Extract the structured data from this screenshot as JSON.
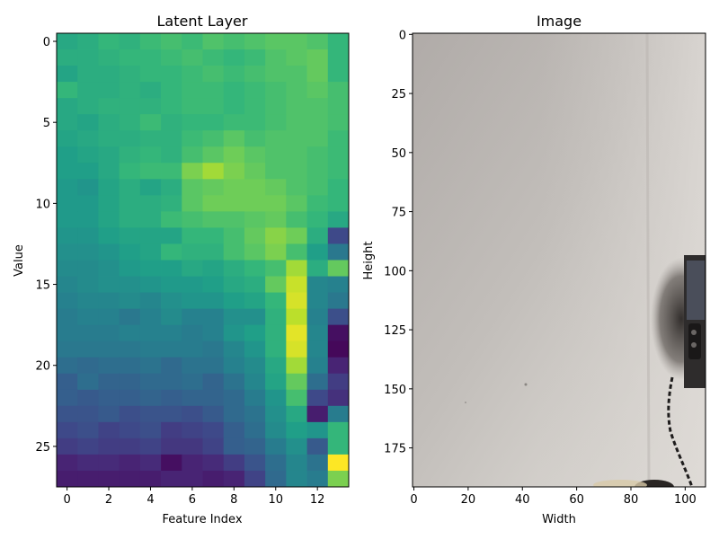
{
  "chart_data": [
    {
      "type": "heatmap",
      "title": "Latent Layer",
      "xlabel": "Feature Index",
      "ylabel": "Value",
      "x_ticks": [
        "0",
        "2",
        "4",
        "6",
        "8",
        "10",
        "12"
      ],
      "y_ticks": [
        "0",
        "5",
        "10",
        "15",
        "20",
        "25"
      ],
      "x_range": [
        -0.5,
        13.5
      ],
      "y_range": [
        -0.5,
        27.5
      ],
      "colormap": "viridis",
      "grid": false,
      "values": [
        [
          0.6,
          0.62,
          0.66,
          0.64,
          0.68,
          0.7,
          0.68,
          0.72,
          0.7,
          0.72,
          0.74,
          0.74,
          0.72,
          0.66
        ],
        [
          0.62,
          0.62,
          0.64,
          0.66,
          0.66,
          0.68,
          0.7,
          0.68,
          0.66,
          0.68,
          0.72,
          0.74,
          0.76,
          0.66
        ],
        [
          0.58,
          0.62,
          0.62,
          0.64,
          0.66,
          0.66,
          0.68,
          0.7,
          0.68,
          0.7,
          0.72,
          0.72,
          0.76,
          0.66
        ],
        [
          0.66,
          0.62,
          0.62,
          0.64,
          0.62,
          0.66,
          0.68,
          0.68,
          0.66,
          0.68,
          0.7,
          0.72,
          0.74,
          0.7
        ],
        [
          0.6,
          0.62,
          0.64,
          0.64,
          0.64,
          0.66,
          0.68,
          0.68,
          0.66,
          0.68,
          0.7,
          0.72,
          0.72,
          0.7
        ],
        [
          0.6,
          0.58,
          0.62,
          0.64,
          0.68,
          0.64,
          0.66,
          0.66,
          0.68,
          0.68,
          0.7,
          0.72,
          0.72,
          0.7
        ],
        [
          0.58,
          0.6,
          0.62,
          0.62,
          0.64,
          0.64,
          0.68,
          0.7,
          0.74,
          0.7,
          0.72,
          0.72,
          0.72,
          0.68
        ],
        [
          0.56,
          0.58,
          0.6,
          0.64,
          0.66,
          0.64,
          0.7,
          0.74,
          0.78,
          0.74,
          0.72,
          0.72,
          0.7,
          0.68
        ],
        [
          0.56,
          0.56,
          0.6,
          0.66,
          0.68,
          0.68,
          0.8,
          0.86,
          0.8,
          0.76,
          0.72,
          0.72,
          0.7,
          0.68
        ],
        [
          0.54,
          0.52,
          0.58,
          0.62,
          0.58,
          0.62,
          0.74,
          0.76,
          0.78,
          0.78,
          0.76,
          0.72,
          0.7,
          0.66
        ],
        [
          0.54,
          0.54,
          0.58,
          0.62,
          0.62,
          0.64,
          0.74,
          0.78,
          0.78,
          0.78,
          0.78,
          0.74,
          0.68,
          0.66
        ],
        [
          0.54,
          0.54,
          0.58,
          0.62,
          0.62,
          0.68,
          0.7,
          0.72,
          0.72,
          0.74,
          0.76,
          0.7,
          0.66,
          0.6
        ],
        [
          0.52,
          0.52,
          0.56,
          0.58,
          0.58,
          0.58,
          0.66,
          0.66,
          0.7,
          0.76,
          0.82,
          0.78,
          0.62,
          0.22
        ],
        [
          0.5,
          0.5,
          0.52,
          0.56,
          0.58,
          0.66,
          0.64,
          0.64,
          0.7,
          0.74,
          0.8,
          0.7,
          0.56,
          0.4
        ],
        [
          0.48,
          0.48,
          0.5,
          0.54,
          0.56,
          0.56,
          0.6,
          0.58,
          0.62,
          0.66,
          0.7,
          0.86,
          0.62,
          0.76
        ],
        [
          0.46,
          0.48,
          0.5,
          0.5,
          0.52,
          0.54,
          0.54,
          0.56,
          0.6,
          0.62,
          0.76,
          0.92,
          0.46,
          0.44
        ],
        [
          0.44,
          0.46,
          0.46,
          0.48,
          0.46,
          0.5,
          0.52,
          0.52,
          0.56,
          0.58,
          0.66,
          0.94,
          0.46,
          0.4
        ],
        [
          0.42,
          0.44,
          0.44,
          0.4,
          0.44,
          0.48,
          0.44,
          0.44,
          0.5,
          0.5,
          0.64,
          0.9,
          0.44,
          0.24
        ],
        [
          0.42,
          0.42,
          0.42,
          0.44,
          0.44,
          0.44,
          0.42,
          0.44,
          0.52,
          0.56,
          0.64,
          0.96,
          0.46,
          0.04
        ],
        [
          0.4,
          0.4,
          0.4,
          0.4,
          0.42,
          0.42,
          0.42,
          0.4,
          0.46,
          0.52,
          0.64,
          0.94,
          0.46,
          0.02
        ],
        [
          0.36,
          0.34,
          0.36,
          0.36,
          0.38,
          0.34,
          0.38,
          0.38,
          0.44,
          0.48,
          0.6,
          0.86,
          0.44,
          0.1
        ],
        [
          0.3,
          0.36,
          0.32,
          0.32,
          0.34,
          0.34,
          0.36,
          0.32,
          0.38,
          0.46,
          0.58,
          0.76,
          0.36,
          0.18
        ],
        [
          0.3,
          0.28,
          0.3,
          0.3,
          0.32,
          0.3,
          0.32,
          0.32,
          0.34,
          0.42,
          0.52,
          0.7,
          0.22,
          0.14
        ],
        [
          0.26,
          0.26,
          0.28,
          0.24,
          0.26,
          0.26,
          0.24,
          0.28,
          0.34,
          0.38,
          0.5,
          0.6,
          0.08,
          0.42
        ],
        [
          0.22,
          0.24,
          0.2,
          0.22,
          0.24,
          0.18,
          0.2,
          0.22,
          0.3,
          0.36,
          0.48,
          0.56,
          0.52,
          0.66
        ],
        [
          0.18,
          0.2,
          0.18,
          0.18,
          0.2,
          0.16,
          0.16,
          0.2,
          0.3,
          0.32,
          0.42,
          0.5,
          0.28,
          0.66
        ],
        [
          0.1,
          0.12,
          0.12,
          0.1,
          0.12,
          0.04,
          0.1,
          0.12,
          0.18,
          0.26,
          0.36,
          0.46,
          0.38,
          1.0
        ],
        [
          0.08,
          0.08,
          0.08,
          0.08,
          0.08,
          0.1,
          0.1,
          0.08,
          0.1,
          0.2,
          0.34,
          0.46,
          0.42,
          0.8
        ]
      ]
    },
    {
      "type": "image",
      "title": "Image",
      "xlabel": "Width",
      "ylabel": "Height",
      "x_ticks": [
        0,
        20,
        40,
        60,
        80,
        100
      ],
      "y_ticks": [
        0,
        25,
        50,
        75,
        100,
        125,
        150,
        175
      ],
      "x_range": [
        -0.5,
        107.5
      ],
      "y_range": [
        -0.5,
        191.5
      ]
    }
  ]
}
